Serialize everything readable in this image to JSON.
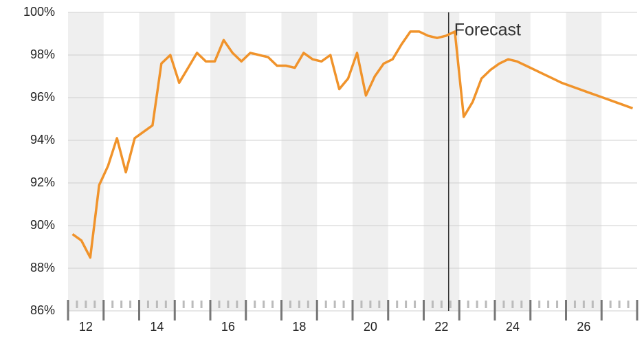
{
  "chart_data": {
    "type": "line",
    "x": [
      11.625,
      11.875,
      12.125,
      12.375,
      12.625,
      12.875,
      13.125,
      13.375,
      13.625,
      13.875,
      14.125,
      14.375,
      14.625,
      14.875,
      15.125,
      15.375,
      15.625,
      15.875,
      16.125,
      16.375,
      16.625,
      16.875,
      17.125,
      17.375,
      17.625,
      17.875,
      18.125,
      18.375,
      18.625,
      18.875,
      19.125,
      19.375,
      19.625,
      19.875,
      20.125,
      20.375,
      20.625,
      20.875,
      21.125,
      21.375,
      21.625,
      21.875,
      22.125,
      22.375,
      22.625,
      22.875,
      23.125,
      23.375,
      23.625,
      23.875,
      24.125,
      24.375,
      24.625,
      24.875,
      25.125,
      25.375,
      25.625,
      25.875,
      26.125,
      26.375,
      26.625,
      26.875,
      27.125,
      27.375
    ],
    "series": [
      {
        "color": "#f0932b",
        "values": [
          89.6,
          89.3,
          88.5,
          91.9,
          92.8,
          94.1,
          92.5,
          94.1,
          94.4,
          94.7,
          97.6,
          98.0,
          96.7,
          97.4,
          98.1,
          97.7,
          97.7,
          98.7,
          98.1,
          97.7,
          98.1,
          98.0,
          97.9,
          97.5,
          97.5,
          97.4,
          98.1,
          97.8,
          97.7,
          98.0,
          96.4,
          96.9,
          98.1,
          96.1,
          97.0,
          97.6,
          97.8,
          98.5,
          99.1,
          99.1,
          98.9,
          98.8,
          98.9,
          99.1,
          95.1,
          95.8,
          96.9,
          97.3,
          97.6,
          97.8,
          97.7,
          97.5,
          97.3,
          97.1,
          96.9,
          96.7,
          96.55,
          96.4,
          96.25,
          96.1,
          95.95,
          95.8,
          95.65,
          95.5
        ]
      }
    ],
    "xlim": [
      11.5,
      27.5
    ],
    "xticks": [
      12,
      14,
      16,
      18,
      20,
      22,
      24,
      26
    ],
    "ylim": [
      86,
      100
    ],
    "yticks": [
      {
        "value": 86,
        "label": "86%"
      },
      {
        "value": 88,
        "label": "88%"
      },
      {
        "value": 90,
        "label": "90%"
      },
      {
        "value": 92,
        "label": "92%"
      },
      {
        "value": 94,
        "label": "94%"
      },
      {
        "value": 96,
        "label": "96%"
      },
      {
        "value": 98,
        "label": "98%"
      },
      {
        "value": 100,
        "label": "100%"
      }
    ],
    "grid": true,
    "annotation": {
      "text": "Forecast",
      "x": 22.2
    }
  }
}
